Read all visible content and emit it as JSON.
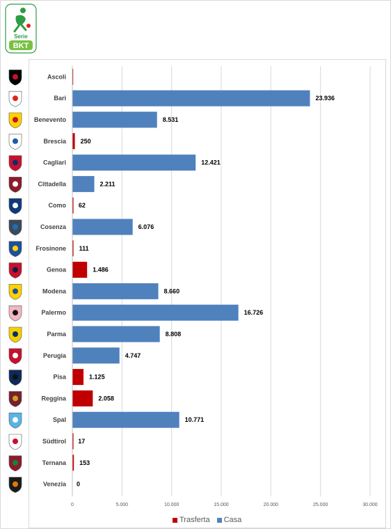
{
  "logo": {
    "top_text": "Serie",
    "brand_text": "BKT",
    "icon": "serie-bkt-logo"
  },
  "chart_data": {
    "type": "bar",
    "orientation": "horizontal",
    "stacked": true,
    "categories": [
      "Ascoli",
      "Bari",
      "Benevento",
      "Brescia",
      "Cagliari",
      "Cittadella",
      "Como",
      "Cosenza",
      "Frosinone",
      "Genoa",
      "Modena",
      "Palermo",
      "Parma",
      "Perugia",
      "Pisa",
      "Reggina",
      "Spal",
      "Südtirol",
      "Ternana",
      "Venezia"
    ],
    "series": [
      {
        "name": "Trasferta",
        "color": "#c00000",
        "values": [
          0,
          0,
          0,
          250,
          0,
          0,
          62,
          0,
          111,
          1486,
          0,
          0,
          0,
          0,
          1125,
          2058,
          0,
          17,
          153,
          0
        ]
      },
      {
        "name": "Casa",
        "color": "#4f81bd",
        "values": [
          0,
          23936,
          8531,
          0,
          12421,
          2211,
          0,
          6076,
          0,
          0,
          8660,
          16726,
          8808,
          4747,
          0,
          0,
          10771,
          0,
          0,
          0
        ]
      }
    ],
    "data_labels": [
      "",
      "23.936",
      "8.531",
      "250",
      "12.421",
      "2.211",
      "62",
      "6.076",
      "111",
      "1.486",
      "8.660",
      "16.726",
      "8.808",
      "4.747",
      "1.125",
      "2.058",
      "10.771",
      "17",
      "153",
      "0"
    ],
    "xlim": [
      0,
      30000
    ],
    "xticks": [
      0,
      5000,
      10000,
      15000,
      20000,
      25000,
      30000
    ],
    "xtick_labels": [
      "0",
      "5.000",
      "10.000",
      "15.000",
      "20.000",
      "25.000",
      "30.000"
    ],
    "grid": true,
    "legend_position": "bottom",
    "team_badges": [
      "ascoli-badge-icon",
      "bari-badge-icon",
      "benevento-badge-icon",
      "brescia-badge-icon",
      "cagliari-badge-icon",
      "cittadella-badge-icon",
      "como-badge-icon",
      "cosenza-badge-icon",
      "frosinone-badge-icon",
      "genoa-badge-icon",
      "modena-badge-icon",
      "palermo-badge-icon",
      "parma-badge-icon",
      "perugia-badge-icon",
      "pisa-badge-icon",
      "reggina-badge-icon",
      "spal-badge-icon",
      "sudtirol-badge-icon",
      "ternana-badge-icon",
      "venezia-badge-icon"
    ],
    "badge_colors": [
      [
        "#000000",
        "#c8102e"
      ],
      [
        "#ffffff",
        "#e2231a"
      ],
      [
        "#ffd200",
        "#c8102e"
      ],
      [
        "#ffffff",
        "#1f5aa6"
      ],
      [
        "#c8102e",
        "#0b2d6b"
      ],
      [
        "#8a1c2b",
        "#ffffff"
      ],
      [
        "#0e3a7b",
        "#ffffff"
      ],
      [
        "#3a4a5a",
        "#1e6fb0"
      ],
      [
        "#1e4f9c",
        "#ffd400"
      ],
      [
        "#c8102e",
        "#0b1f44"
      ],
      [
        "#ffd200",
        "#1e4f9c"
      ],
      [
        "#f2b6c6",
        "#111111"
      ],
      [
        "#f5d000",
        "#0b2d6b"
      ],
      [
        "#c8102e",
        "#ffffff"
      ],
      [
        "#0e2a5a",
        "#111111"
      ],
      [
        "#7a1f2b",
        "#c9a227"
      ],
      [
        "#5ab4e6",
        "#ffffff"
      ],
      [
        "#ffffff",
        "#c8102e"
      ],
      [
        "#8a1c2b",
        "#1a7f3c"
      ],
      [
        "#1a1a1a",
        "#e07b00"
      ]
    ]
  },
  "legend": {
    "items": [
      "Trasferta",
      "Casa"
    ]
  }
}
